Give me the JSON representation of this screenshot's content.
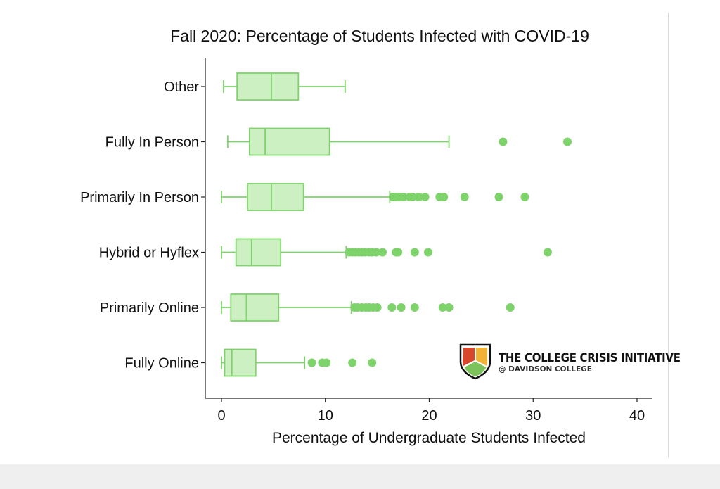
{
  "chart_data": {
    "type": "boxplot",
    "title": "Fall 2020: Percentage of Students Infected with COVID-19",
    "xlabel": "Percentage of Undergraduate Students Infected",
    "ylabel": "",
    "xlim": [
      0,
      40
    ],
    "xticks": [
      0,
      10,
      20,
      30,
      40
    ],
    "grid": false,
    "orientation": "horizontal",
    "color": "#7ed36b",
    "fill": "#cdf0c2",
    "categories": [
      "Other",
      "Fully In Person",
      "Primarily In Person",
      "Hybrid or Hyflex",
      "Primarily Online",
      "Fully Online"
    ],
    "boxes": [
      {
        "name": "Other",
        "whisker_low": 0.2,
        "q1": 1.5,
        "median": 4.8,
        "q3": 7.4,
        "whisker_high": 11.9,
        "outliers": []
      },
      {
        "name": "Fully In Person",
        "whisker_low": 0.6,
        "q1": 2.7,
        "median": 4.2,
        "q3": 10.4,
        "whisker_high": 21.9,
        "outliers": [
          27.1,
          33.3
        ]
      },
      {
        "name": "Primarily In Person",
        "whisker_low": 0.0,
        "q1": 2.5,
        "median": 4.8,
        "q3": 7.9,
        "whisker_high": 16.2,
        "outliers": [
          16.5,
          16.8,
          17.1,
          17.5,
          18.1,
          18.4,
          19.0,
          19.6,
          21.0,
          21.4,
          23.4,
          26.7,
          29.2
        ]
      },
      {
        "name": "Hybrid or Hyflex",
        "whisker_low": 0.0,
        "q1": 1.4,
        "median": 2.9,
        "q3": 5.7,
        "whisker_high": 12.0,
        "outliers": [
          12.3,
          12.6,
          12.9,
          13.2,
          13.5,
          13.8,
          14.2,
          14.5,
          14.9,
          15.5,
          16.8,
          17.0,
          18.6,
          19.9,
          31.4
        ]
      },
      {
        "name": "Primarily Online",
        "whisker_low": 0.0,
        "q1": 0.9,
        "median": 2.4,
        "q3": 5.5,
        "whisker_high": 12.5,
        "outliers": [
          12.8,
          13.1,
          13.5,
          13.9,
          14.2,
          14.6,
          15.0,
          16.4,
          17.3,
          18.6,
          21.3,
          21.9,
          27.8
        ]
      },
      {
        "name": "Fully Online",
        "whisker_low": 0.0,
        "q1": 0.3,
        "median": 1.0,
        "q3": 3.3,
        "whisker_high": 8.0,
        "outliers": [
          8.7,
          9.7,
          10.1,
          12.6,
          14.5
        ]
      }
    ]
  },
  "logo": {
    "name": "THE COLLEGE CRISIS INITIATIVE",
    "subtitle": "@ DAVIDSON COLLEGE",
    "colors": [
      "#d9472b",
      "#f2b233",
      "#7dc35b"
    ]
  }
}
